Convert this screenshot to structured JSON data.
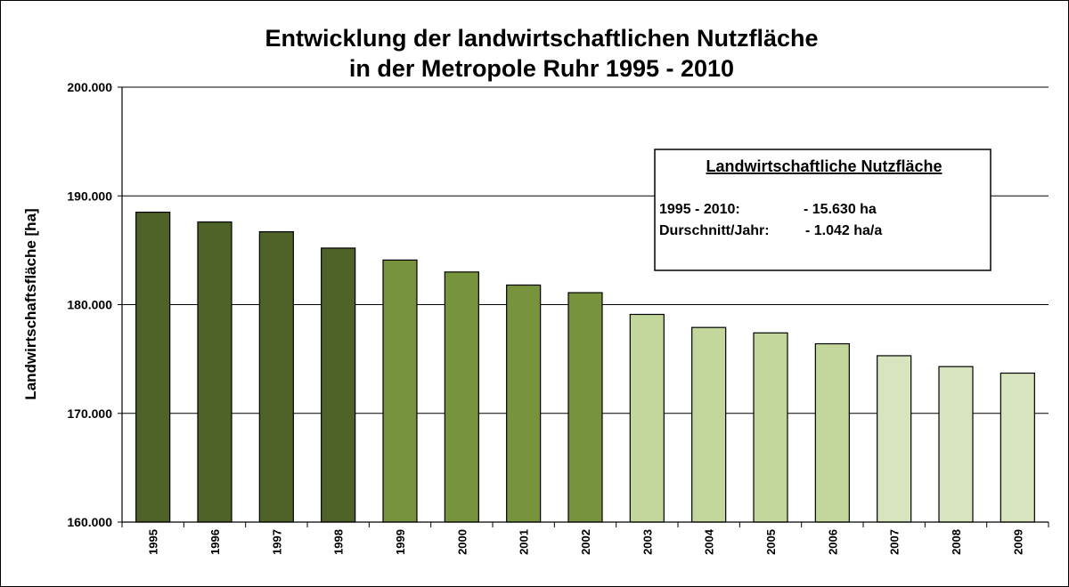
{
  "chart_data": {
    "type": "bar",
    "title_line1": "Entwicklung der landwirtschaftlichen Nutzfläche",
    "title_line2": "in der Metropole Ruhr 1995 - 2010",
    "xlabel": "",
    "ylabel": "Landwirtschaftsfläche [ha]",
    "ylim": [
      160000,
      200000
    ],
    "yticks": [
      160000,
      170000,
      180000,
      190000,
      200000
    ],
    "ytick_labels": [
      "160.000",
      "170.000",
      "180.000",
      "190.000",
      "200.000"
    ],
    "grid": true,
    "categories": [
      "1995",
      "1996",
      "1997",
      "1998",
      "1999",
      "2000",
      "2001",
      "2002",
      "2003",
      "2004",
      "2005",
      "2006",
      "2007",
      "2008",
      "2009"
    ],
    "values": [
      188500,
      187600,
      186700,
      185200,
      184100,
      183000,
      181800,
      181100,
      179100,
      177900,
      177400,
      176400,
      175300,
      174300,
      173700
    ],
    "bar_colors": [
      "#4f6228",
      "#4f6228",
      "#4f6228",
      "#4f6228",
      "#77933c",
      "#77933c",
      "#77933c",
      "#77933c",
      "#c3d69b",
      "#c3d69b",
      "#c3d69b",
      "#c3d69b",
      "#d7e4bd",
      "#d7e4bd",
      "#d7e4bd"
    ],
    "annotation": {
      "title": "Landwirtschaftliche Nutzfläche",
      "row1_label": "1995 - 2010:",
      "row1_value": "- 15.630 ha",
      "row2_label": "Durschnitt/Jahr:",
      "row2_value": "- 1.042 ha/a"
    }
  }
}
